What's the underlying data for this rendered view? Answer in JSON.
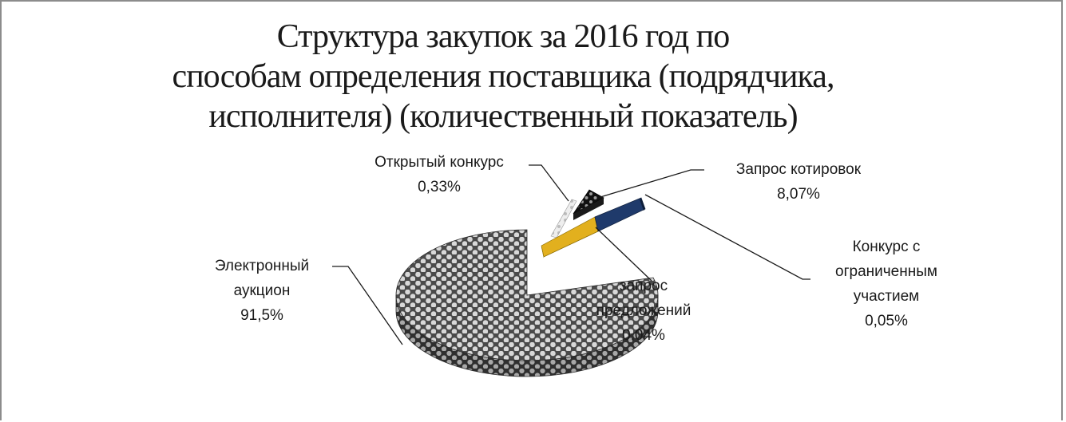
{
  "chart_data": {
    "type": "pie",
    "title": "Структура закупок за 2016 год по способам определения поставщика (подрядчика, исполнителя) (количественный показатель)",
    "title_lines": [
      "Структура закупок за 2016 год по",
      "способам определения поставщика (подрядчика,",
      "исполнителя) (количественный показатель)"
    ],
    "three_d": true,
    "exploded": true,
    "slices": [
      {
        "label_lines": [
          "Электронный",
          "аукцион"
        ],
        "value": 91.5,
        "value_label": "91,5%",
        "color": "#6b6b6b",
        "pattern": "dots-gray"
      },
      {
        "label_lines": [
          "Открытый конкурс"
        ],
        "value": 0.33,
        "value_label": "0,33%",
        "color": "#d0d0d0",
        "pattern": "light"
      },
      {
        "label_lines": [
          "Запрос котировок"
        ],
        "value": 8.07,
        "value_label": "8,07%",
        "color": "#222222",
        "pattern": "dots-dark"
      },
      {
        "label_lines": [
          "Конкурс с",
          "ограниченным",
          "участием"
        ],
        "value": 0.05,
        "value_label": "0,05%",
        "color": "#1f3a6b",
        "pattern": "solid"
      },
      {
        "label_lines": [
          "запрос",
          "предложений"
        ],
        "value": 0.04,
        "value_label": "0,04%",
        "color": "#e0b020",
        "pattern": "solid"
      }
    ]
  }
}
